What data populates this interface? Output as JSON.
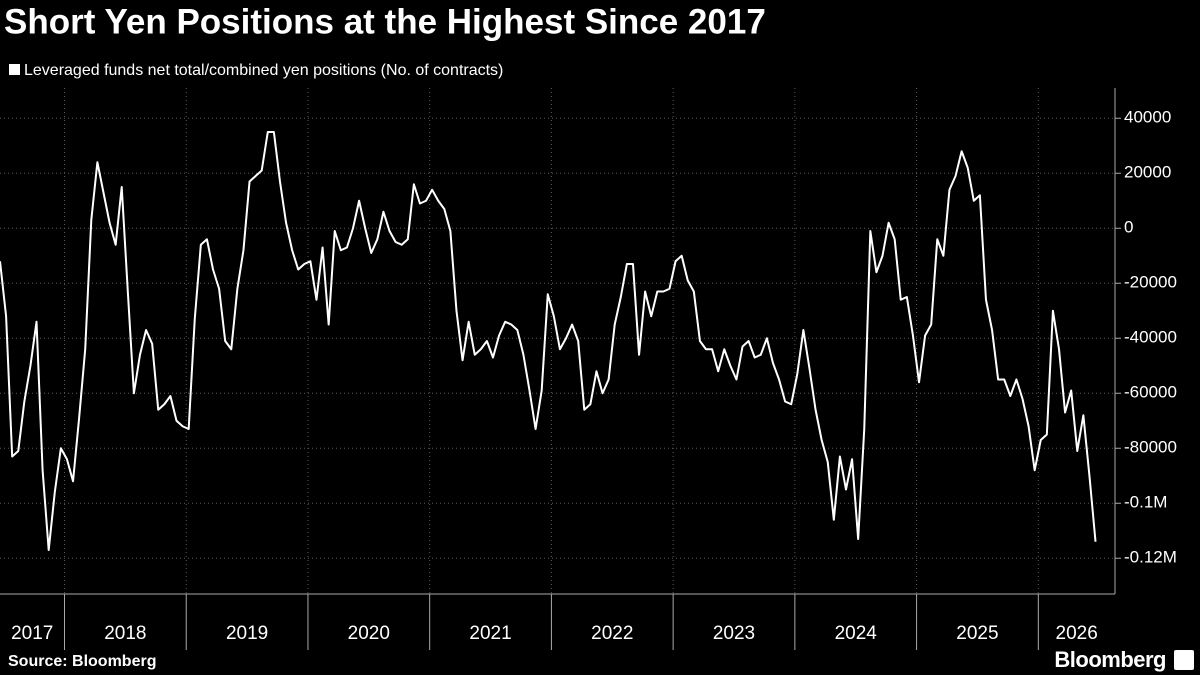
{
  "chart_data": {
    "type": "line",
    "title": "Short Yen Positions at the Highest Since 2017",
    "source": "Source: Bloomberg",
    "brand": "Bloomberg",
    "x": [
      2017.47,
      2017.52,
      2017.57,
      2017.62,
      2017.67,
      2017.72,
      2017.77,
      2017.82,
      2017.87,
      2017.92,
      2017.97,
      2018.02,
      2018.07,
      2018.12,
      2018.17,
      2018.22,
      2018.27,
      2018.32,
      2018.37,
      2018.42,
      2018.47,
      2018.52,
      2018.57,
      2018.62,
      2018.67,
      2018.72,
      2018.77,
      2018.82,
      2018.87,
      2018.92,
      2018.97,
      2019.02,
      2019.07,
      2019.12,
      2019.17,
      2019.22,
      2019.27,
      2019.32,
      2019.37,
      2019.42,
      2019.47,
      2019.52,
      2019.57,
      2019.62,
      2019.67,
      2019.72,
      2019.77,
      2019.82,
      2019.87,
      2019.92,
      2019.97,
      2020.02,
      2020.07,
      2020.12,
      2020.17,
      2020.22,
      2020.27,
      2020.32,
      2020.37,
      2020.42,
      2020.47,
      2020.52,
      2020.57,
      2020.62,
      2020.67,
      2020.72,
      2020.77,
      2020.82,
      2020.87,
      2020.92,
      2020.97,
      2021.02,
      2021.07,
      2021.12,
      2021.17,
      2021.22,
      2021.27,
      2021.32,
      2021.37,
      2021.42,
      2021.47,
      2021.52,
      2021.57,
      2021.62,
      2021.67,
      2021.72,
      2021.77,
      2021.82,
      2021.87,
      2021.92,
      2021.97,
      2022.02,
      2022.07,
      2022.12,
      2022.17,
      2022.22,
      2022.27,
      2022.32,
      2022.37,
      2022.42,
      2022.47,
      2022.52,
      2022.57,
      2022.62,
      2022.67,
      2022.72,
      2022.77,
      2022.82,
      2022.87,
      2022.92,
      2022.97,
      2023.02,
      2023.07,
      2023.12,
      2023.17,
      2023.22,
      2023.27,
      2023.32,
      2023.37,
      2023.42,
      2023.47,
      2023.52,
      2023.57,
      2023.62,
      2023.67,
      2023.72,
      2023.77,
      2023.82,
      2023.87,
      2023.92,
      2023.97,
      2024.02,
      2024.07,
      2024.12,
      2024.17,
      2024.22,
      2024.27,
      2024.32,
      2024.37,
      2024.42,
      2024.47,
      2024.52,
      2024.57,
      2024.62,
      2024.67,
      2024.72,
      2024.77,
      2024.82,
      2024.87,
      2024.92,
      2024.97,
      2025.02,
      2025.07,
      2025.12,
      2025.17,
      2025.22,
      2025.27,
      2025.32,
      2025.37,
      2025.42,
      2025.47,
      2025.52,
      2025.57,
      2025.62,
      2025.67,
      2025.72,
      2025.77,
      2025.82,
      2025.87,
      2025.92,
      2025.97,
      2026.02,
      2026.07,
      2026.12,
      2026.17,
      2026.22,
      2026.27,
      2026.32,
      2026.37,
      2026.42,
      2026.47
    ],
    "series": [
      {
        "name": "Leveraged funds net total/combined yen positions (No. of contracts)",
        "color": "#ffffff",
        "values": [
          -12000,
          -32000,
          -83000,
          -81000,
          -63000,
          -50000,
          -34000,
          -88000,
          -117000,
          -96000,
          -80000,
          -84000,
          -92000,
          -69000,
          -44000,
          3000,
          24000,
          13000,
          2000,
          -6000,
          15000,
          -23000,
          -60000,
          -46000,
          -37000,
          -42000,
          -66000,
          -64000,
          -61000,
          -70000,
          -72000,
          -73000,
          -33000,
          -6000,
          -4000,
          -15000,
          -22000,
          -41000,
          -44000,
          -22000,
          -8000,
          17000,
          19000,
          21000,
          35000,
          35000,
          17000,
          2000,
          -8000,
          -15000,
          -13000,
          -12000,
          -26000,
          -7000,
          -35000,
          -1000,
          -8000,
          -7000,
          0,
          10000,
          0,
          -9000,
          -4000,
          6000,
          -1000,
          -5000,
          -6000,
          -4000,
          16000,
          9000,
          10000,
          14000,
          10000,
          7000,
          -1000,
          -30000,
          -48000,
          -34000,
          -46000,
          -44000,
          -41000,
          -47000,
          -39000,
          -34000,
          -35000,
          -37000,
          -46000,
          -59000,
          -73000,
          -59000,
          -24000,
          -32000,
          -44000,
          -40000,
          -35000,
          -41000,
          -66000,
          -64000,
          -52000,
          -60000,
          -55000,
          -35000,
          -25000,
          -13000,
          -13000,
          -46000,
          -23000,
          -32000,
          -23000,
          -23000,
          -22000,
          -12000,
          -10000,
          -19000,
          -23000,
          -41000,
          -44000,
          -44000,
          -52000,
          -44000,
          -50000,
          -55000,
          -43000,
          -41000,
          -47000,
          -46000,
          -40000,
          -49000,
          -55000,
          -63000,
          -64000,
          -53000,
          -37000,
          -51000,
          -66000,
          -77000,
          -85000,
          -106000,
          -83000,
          -95000,
          -84000,
          -113000,
          -73000,
          -1000,
          -16000,
          -10000,
          2000,
          -4000,
          -26000,
          -25000,
          -39000,
          -56000,
          -39000,
          -35000,
          -4000,
          -10000,
          14000,
          19000,
          28000,
          22000,
          10000,
          12000,
          -26000,
          -37000,
          -55000,
          -55000,
          -61000,
          -55000,
          -62000,
          -72000,
          -88000,
          -77000,
          -75000,
          -30000,
          -44000,
          -67000,
          -59000,
          -81000,
          -68000,
          -90000,
          -114000
        ]
      }
    ],
    "xlim": [
      2017.47,
      2026.63
    ],
    "xticks": [
      2017,
      2018,
      2019,
      2020,
      2021,
      2022,
      2023,
      2024,
      2025,
      2026
    ],
    "ylim": [
      -133000,
      51000
    ],
    "yticks": [
      40000,
      20000,
      0,
      -20000,
      -40000,
      -60000,
      -80000,
      {
        "value": -100000,
        "label": "-0.1M"
      },
      {
        "value": -120000,
        "label": "-0.12M"
      }
    ],
    "grid": true
  }
}
